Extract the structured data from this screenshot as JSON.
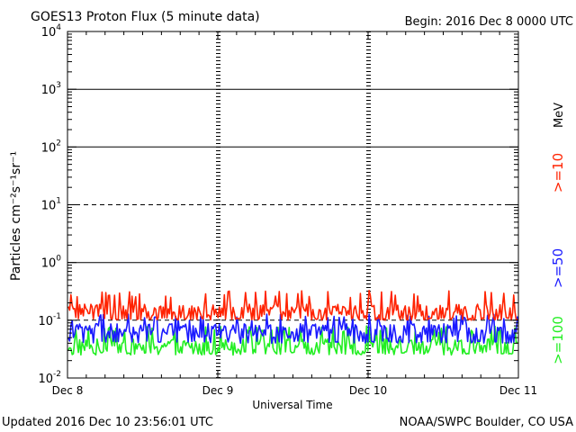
{
  "chart_data": {
    "type": "line",
    "title": "GOES13 Proton Flux (5 minute data)",
    "begin_label": "Begin: 2016 Dec 8 0000 UTC",
    "xlabel": "Universal Time",
    "ylabel": "Particles cm⁻²s⁻¹sr⁻¹",
    "yscale": "log",
    "ylim": [
      0.01,
      10000
    ],
    "y_ticks": [
      {
        "base": "10",
        "exp": "4"
      },
      {
        "base": "10",
        "exp": "3"
      },
      {
        "base": "10",
        "exp": "2"
      },
      {
        "base": "10",
        "exp": "1"
      },
      {
        "base": "10",
        "exp": "0"
      },
      {
        "base": "10",
        "exp": "-1"
      },
      {
        "base": "10",
        "exp": "-2"
      }
    ],
    "x_ticks": [
      "Dec 8",
      "Dec 9",
      "Dec 10",
      "Dec 11"
    ],
    "xlim": [
      "2016-12-08T00:00",
      "2016-12-11T00:00"
    ],
    "reference_lines": [
      {
        "value": 1000,
        "style": "solid"
      },
      {
        "value": 100,
        "style": "solid"
      },
      {
        "value": 10,
        "style": "dashed"
      },
      {
        "value": 1,
        "style": "solid"
      },
      {
        "value": 0.1,
        "style": "dashed"
      }
    ],
    "legend": {
      "placement": "right",
      "unit": "MeV",
      "items": [
        {
          "label": ">=10",
          "color": "#ff2200"
        },
        {
          "label": ">=50",
          "color": "#1a1aff"
        },
        {
          "label": ">=100",
          "color": "#22ee22"
        }
      ]
    },
    "series": [
      {
        "name": ">=10",
        "color": "#ff2200",
        "level": 0.14,
        "min": 0.1,
        "max": 0.33
      },
      {
        "name": ">=50",
        "color": "#1a1aff",
        "level": 0.065,
        "min": 0.04,
        "max": 0.13
      },
      {
        "name": ">=100",
        "color": "#22ee22",
        "level": 0.035,
        "min": 0.025,
        "max": 0.08
      }
    ],
    "footer_left": "Updated 2016 Dec 10 23:56:01 UTC",
    "footer_right": "NOAA/SWPC Boulder, CO USA"
  }
}
